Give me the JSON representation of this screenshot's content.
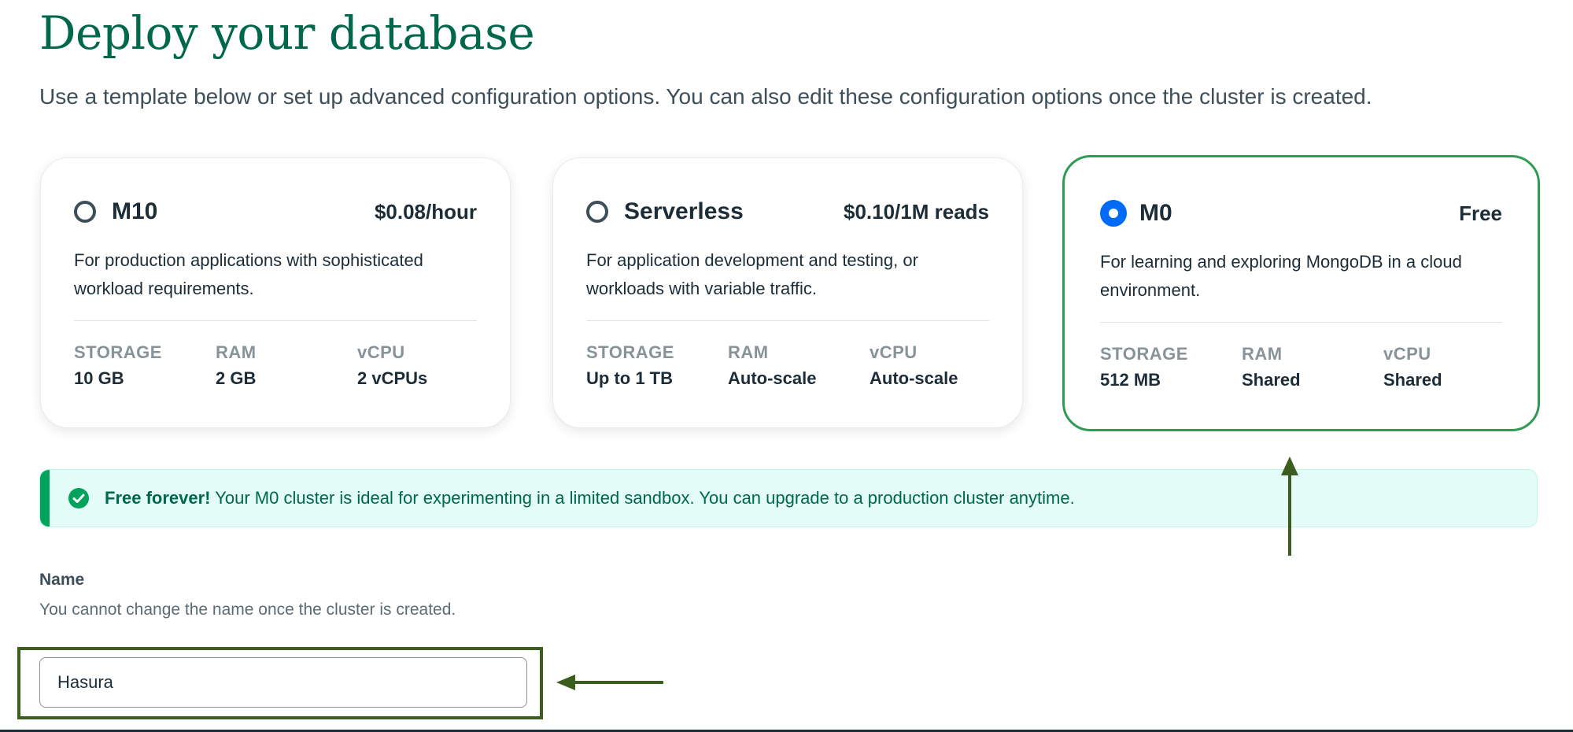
{
  "page": {
    "title": "Deploy your database",
    "subtitle": "Use a template below or set up advanced configuration options. You can also edit these configuration options once the cluster is created."
  },
  "tiers": [
    {
      "name": "M10",
      "price": "$0.08/hour",
      "selected": false,
      "description": "For production applications with sophisticated workload requirements.",
      "specs": [
        {
          "label": "STORAGE",
          "value": "10 GB"
        },
        {
          "label": "RAM",
          "value": "2 GB"
        },
        {
          "label": "vCPU",
          "value": "2 vCPUs"
        }
      ]
    },
    {
      "name": "Serverless",
      "price": "$0.10/1M reads",
      "selected": false,
      "description": "For application development and testing, or workloads with variable traffic.",
      "specs": [
        {
          "label": "STORAGE",
          "value": "Up to 1 TB"
        },
        {
          "label": "RAM",
          "value": "Auto-scale"
        },
        {
          "label": "vCPU",
          "value": "Auto-scale"
        }
      ]
    },
    {
      "name": "M0",
      "price": "Free",
      "selected": true,
      "description": "For learning and exploring MongoDB in a cloud environment.",
      "specs": [
        {
          "label": "STORAGE",
          "value": "512 MB"
        },
        {
          "label": "RAM",
          "value": "Shared"
        },
        {
          "label": "vCPU",
          "value": "Shared"
        }
      ]
    }
  ],
  "banner": {
    "bold": "Free forever!",
    "text": " Your M0 cluster is ideal for experimenting in a limited sandbox. You can upgrade to a production cluster anytime.",
    "icon": "check-circle-icon"
  },
  "name_field": {
    "label": "Name",
    "help": "You cannot change the name once the cluster is created.",
    "value": "Hasura"
  },
  "colors": {
    "brand_green": "#00684a",
    "selected_border": "#2f9b53",
    "radio_selected": "#016bf8",
    "banner_bg": "#e3fcf7",
    "annotation": "#3b5d1d"
  }
}
